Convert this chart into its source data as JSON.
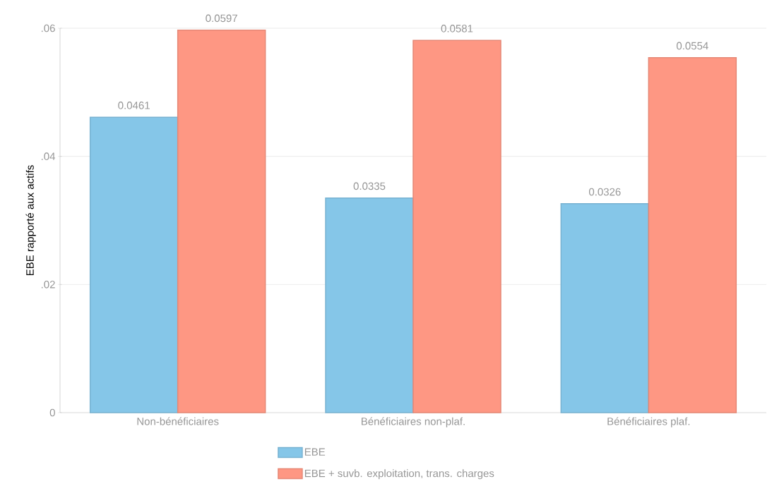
{
  "chart_data": {
    "type": "bar",
    "ylabel": "EBE rapporté aux actifs",
    "categories": [
      "Non-bénéficiaires",
      "Bénéficiaires non-plaf.",
      "Bénéficiaires plaf."
    ],
    "series": [
      {
        "name": "EBE",
        "color": "#85c6e8",
        "values": [
          0.0461,
          0.0335,
          0.0326
        ]
      },
      {
        "name": "EBE + suvb. exploitation, trans. charges",
        "color": "#fe9783",
        "values": [
          0.0597,
          0.0581,
          0.0554
        ]
      }
    ],
    "ylim": [
      0,
      0.06
    ],
    "yticks": [
      0,
      {
        "value": 0.02,
        "label": ".02"
      },
      {
        "value": 0.04,
        "label": ".04"
      },
      {
        "value": 0.06,
        "label": ".06"
      }
    ],
    "grid": "y",
    "legend": "bottom",
    "data_labels": true
  }
}
